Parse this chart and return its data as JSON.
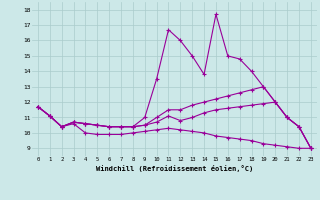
{
  "bg_color": "#cce8e8",
  "line_color": "#990099",
  "grid_color": "#aacccc",
  "xlabel": "Windchill (Refroidissement éolien,°C)",
  "ylabel_ticks": [
    9,
    10,
    11,
    12,
    13,
    14,
    15,
    16,
    17,
    18
  ],
  "xlabel_ticks": [
    0,
    1,
    2,
    3,
    4,
    5,
    6,
    7,
    8,
    9,
    10,
    11,
    12,
    13,
    14,
    15,
    16,
    17,
    18,
    19,
    20,
    21,
    22,
    23
  ],
  "ylim": [
    8.5,
    18.5
  ],
  "xlim": [
    -0.5,
    23.5
  ],
  "series": [
    [
      11.7,
      11.1,
      10.4,
      10.6,
      10.0,
      9.9,
      9.9,
      9.9,
      10.0,
      10.1,
      10.2,
      10.3,
      10.2,
      10.1,
      10.0,
      9.8,
      9.7,
      9.6,
      9.5,
      9.3,
      9.2,
      9.1,
      9.0,
      9.0
    ],
    [
      11.7,
      11.1,
      10.4,
      10.7,
      10.6,
      10.5,
      10.4,
      10.4,
      10.4,
      10.5,
      10.7,
      11.1,
      10.8,
      11.0,
      11.3,
      11.5,
      11.6,
      11.7,
      11.8,
      11.9,
      12.0,
      11.0,
      10.4,
      9.0
    ],
    [
      11.7,
      11.1,
      10.4,
      10.7,
      10.6,
      10.5,
      10.4,
      10.4,
      10.4,
      10.5,
      11.0,
      11.5,
      11.5,
      11.8,
      12.0,
      12.2,
      12.4,
      12.6,
      12.8,
      13.0,
      12.0,
      11.0,
      10.4,
      9.0
    ],
    [
      11.7,
      11.1,
      10.4,
      10.7,
      10.6,
      10.5,
      10.4,
      10.4,
      10.4,
      11.0,
      13.5,
      16.7,
      16.0,
      15.0,
      13.8,
      17.7,
      15.0,
      14.8,
      14.0,
      13.0,
      12.0,
      11.0,
      10.4,
      9.0
    ]
  ]
}
